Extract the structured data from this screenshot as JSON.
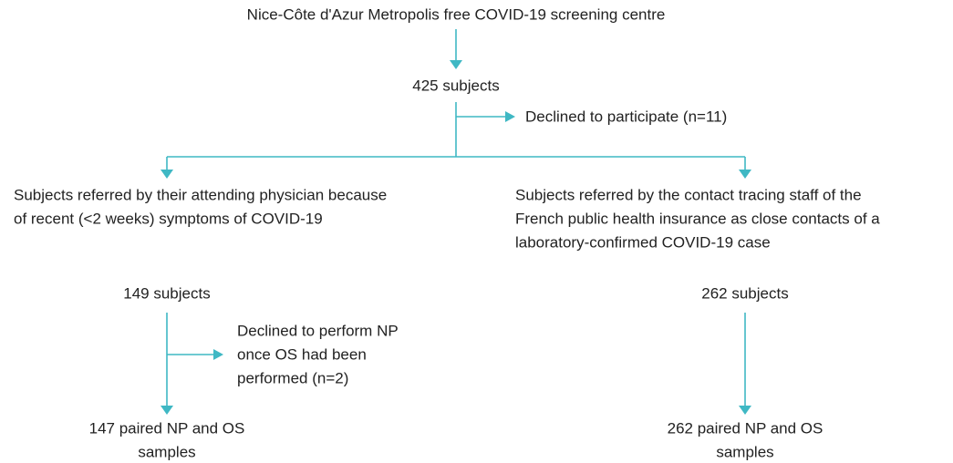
{
  "nodes": [
    {
      "lines": [
        "Nice-Côte d'Azur Metropolis free COVID-19 screening centre"
      ]
    },
    {
      "lines": [
        "425 subjects"
      ]
    },
    {
      "lines": [
        "Declined to participate (n=11)"
      ]
    },
    {
      "lines": [
        "Subjects referred by their attending physician because",
        "of recent (<2 weeks) symptoms of COVID-19"
      ]
    },
    {
      "lines": [
        "Subjects referred by the contact tracing staff of the",
        "French public health insurance as close contacts of a",
        "laboratory-confirmed COVID-19 case"
      ]
    },
    {
      "lines": [
        "149 subjects"
      ]
    },
    {
      "lines": [
        "Declined to perform NP",
        "once OS had been",
        "performed (n=2)"
      ]
    },
    {
      "lines": [
        "147 paired NP and OS",
        "samples"
      ]
    },
    {
      "lines": [
        "262 subjects"
      ]
    },
    {
      "lines": [
        "262 paired NP and OS",
        "samples"
      ]
    }
  ]
}
